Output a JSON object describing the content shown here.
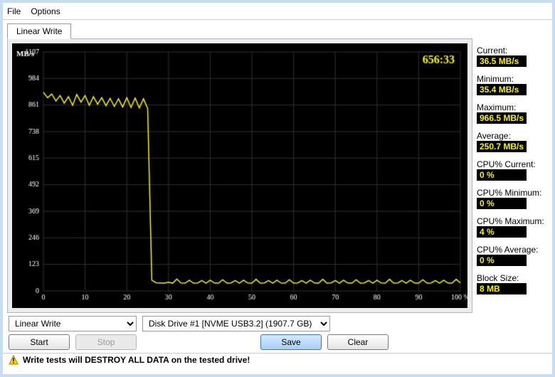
{
  "menu": {
    "file": "File",
    "options": "Options"
  },
  "tab": {
    "label": "Linear Write"
  },
  "chart": {
    "type": "line",
    "y_label": "MB/s",
    "x_unit": "%",
    "timer": "656:33",
    "background_color": "#000000",
    "grid_color": "#303030",
    "line_color": "#f8f200",
    "axis_text_color": "#ffffff",
    "timer_color": "#f8f200",
    "xlim": [
      0,
      100
    ],
    "ylim": [
      0,
      1107
    ],
    "ytick_step": 123,
    "xtick_step": 10,
    "yticks": [
      0,
      123,
      246,
      369,
      492,
      615,
      738,
      861,
      984,
      1107
    ],
    "xticks": [
      0,
      10,
      20,
      30,
      40,
      50,
      60,
      70,
      80,
      90,
      100
    ],
    "data_y": [
      920,
      895,
      912,
      880,
      905,
      870,
      900,
      860,
      910,
      875,
      905,
      860,
      900,
      865,
      895,
      858,
      892,
      855,
      890,
      852,
      895,
      850,
      893,
      848,
      890,
      845,
      50,
      38,
      37,
      36,
      40,
      36,
      55,
      37,
      36,
      50,
      36,
      37,
      48,
      36,
      50,
      37,
      36,
      52,
      36,
      37,
      48,
      36,
      50,
      37,
      36,
      54,
      36,
      37,
      48,
      36,
      50,
      37,
      36,
      52,
      36,
      37,
      48,
      36,
      50,
      37,
      36,
      54,
      36,
      37,
      48,
      36,
      50,
      37,
      36,
      52,
      36,
      37,
      48,
      36,
      50,
      37,
      36,
      54,
      36,
      37,
      48,
      36,
      50,
      37,
      36,
      52,
      36,
      37,
      48,
      36,
      50,
      37,
      36,
      54,
      37
    ],
    "line_width": 1.5,
    "title_fontsize": 12,
    "axis_fontsize": 10,
    "timer_fontsize": 16,
    "timer_fontweight": "bold"
  },
  "stats": {
    "current": {
      "label": "Current:",
      "value": "36.5 MB/s"
    },
    "minimum": {
      "label": "Minimum:",
      "value": "35.4 MB/s"
    },
    "maximum": {
      "label": "Maximum:",
      "value": "966.5 MB/s"
    },
    "average": {
      "label": "Average:",
      "value": "250.7 MB/s"
    },
    "cpu_current": {
      "label": "CPU% Current:",
      "value": "0 %"
    },
    "cpu_minimum": {
      "label": "CPU% Minimum:",
      "value": "0 %"
    },
    "cpu_maximum": {
      "label": "CPU% Maximum:",
      "value": "4 %"
    },
    "cpu_average": {
      "label": "CPU% Average:",
      "value": "0 %"
    },
    "block_size": {
      "label": "Block Size:",
      "value": "8 MB"
    }
  },
  "controls": {
    "test_select": "Linear Write",
    "drive_select": "Disk Drive #1  [NVME USB3.2]  (1907.7 GB)",
    "start": "Start",
    "stop": "Stop",
    "save": "Save",
    "clear": "Clear"
  },
  "warning": {
    "icon": "warning-icon",
    "text": "Write tests will DESTROY ALL DATA on the tested drive!"
  },
  "colors": {
    "stat_value_bg": "#000000",
    "stat_value_fg": "#f8f200"
  }
}
